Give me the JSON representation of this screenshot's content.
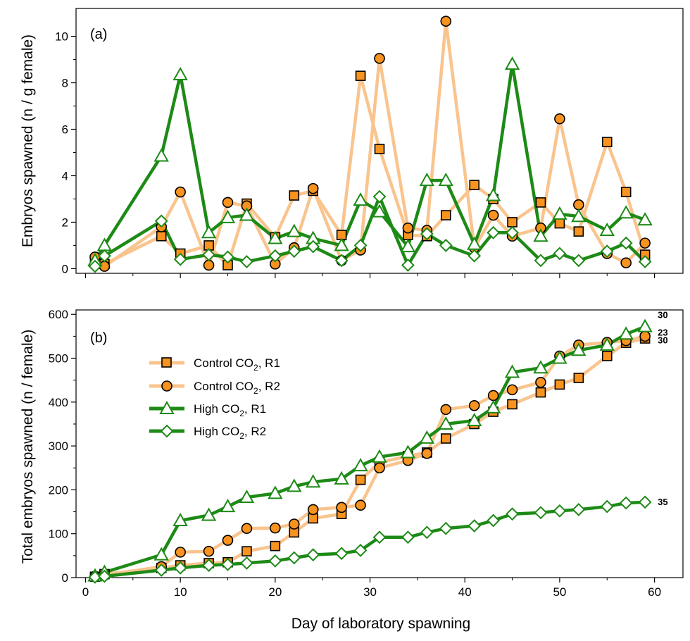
{
  "chart_data": [
    {
      "panel": "(a)",
      "type": "line",
      "xlabel": "",
      "ylabel": "Embryos spawned (n / g female)",
      "xlim": [
        -1,
        63
      ],
      "ylim": [
        -0.2,
        11.2
      ],
      "yticks": [
        0,
        2,
        4,
        6,
        8,
        10
      ],
      "xticks": [
        0,
        10,
        20,
        30,
        40,
        50,
        60
      ],
      "series": [
        {
          "name": "Control CO2, R1",
          "color": "#f9c48e",
          "marker": "square",
          "x": [
            1,
            2,
            8,
            10,
            13,
            15,
            17,
            20,
            22,
            24,
            27,
            29,
            31,
            34,
            36,
            38,
            41,
            43,
            45,
            48,
            50,
            52,
            55,
            57,
            59
          ],
          "y": [
            0.3,
            0.2,
            1.4,
            0.65,
            1.0,
            0.15,
            2.8,
            1.35,
            3.15,
            3.35,
            1.45,
            8.3,
            5.15,
            1.45,
            1.4,
            2.3,
            3.6,
            3.0,
            2.0,
            2.85,
            1.95,
            1.6,
            5.45,
            3.3,
            0.6
          ]
        },
        {
          "name": "Control CO2, R2",
          "color": "#f9c48e",
          "marker": "circle",
          "x": [
            1,
            2,
            8,
            10,
            13,
            15,
            17,
            20,
            22,
            24,
            27,
            29,
            31,
            34,
            36,
            38,
            41,
            43,
            45,
            48,
            50,
            52,
            55,
            57,
            59
          ],
          "y": [
            0.5,
            0.1,
            1.8,
            3.3,
            0.15,
            2.85,
            2.7,
            0.2,
            0.9,
            3.45,
            0.35,
            0.8,
            9.05,
            1.75,
            1.65,
            10.65,
            0.9,
            2.3,
            1.4,
            1.75,
            6.45,
            2.75,
            0.65,
            0.25,
            1.1
          ]
        },
        {
          "name": "High CO2, R1",
          "color": "#1d8a16",
          "marker": "triangle",
          "x": [
            1,
            2,
            8,
            10,
            13,
            15,
            17,
            20,
            22,
            24,
            27,
            29,
            31,
            34,
            36,
            38,
            41,
            43,
            45,
            48,
            50,
            52,
            55,
            57,
            59
          ],
          "y": [
            0.35,
            1.0,
            4.85,
            8.35,
            1.55,
            2.2,
            2.3,
            1.3,
            1.6,
            1.3,
            1.0,
            2.95,
            2.45,
            0.95,
            3.8,
            3.8,
            1.05,
            3.15,
            8.8,
            1.4,
            2.35,
            2.25,
            1.65,
            2.4,
            2.1
          ]
        },
        {
          "name": "High CO2, R2",
          "color": "#1d8a16",
          "marker": "diamond",
          "x": [
            1,
            2,
            8,
            10,
            13,
            15,
            17,
            20,
            22,
            24,
            27,
            29,
            31,
            34,
            36,
            38,
            41,
            43,
            45,
            48,
            50,
            52,
            55,
            57,
            59
          ],
          "y": [
            0.1,
            0.55,
            2.05,
            0.4,
            0.6,
            0.5,
            0.3,
            0.55,
            0.75,
            0.95,
            0.35,
            1.0,
            3.1,
            0.15,
            1.5,
            1.0,
            0.55,
            1.55,
            1.55,
            0.35,
            0.65,
            0.35,
            0.75,
            1.1,
            0.3
          ]
        }
      ]
    },
    {
      "panel": "(b)",
      "type": "line",
      "xlabel": "Day of laboratory spawning",
      "ylabel": "Total embryos spawned (n / female)",
      "xlim": [
        -1,
        63
      ],
      "ylim": [
        0,
        610
      ],
      "yticks": [
        0,
        100,
        200,
        300,
        400,
        500,
        600
      ],
      "xticks": [
        0,
        10,
        20,
        30,
        40,
        50,
        60
      ],
      "legend": "upper-left",
      "series": [
        {
          "name": "Control CO2, R1",
          "color": "#f9c48e",
          "marker": "square",
          "end_label": "30",
          "x": [
            1,
            2,
            8,
            10,
            13,
            15,
            17,
            20,
            22,
            24,
            27,
            29,
            31,
            34,
            36,
            38,
            41,
            43,
            45,
            48,
            50,
            52,
            55,
            57,
            59
          ],
          "y": [
            2,
            8,
            22,
            28,
            33,
            35,
            60,
            72,
            103,
            135,
            145,
            223,
            262,
            277,
            285,
            317,
            350,
            378,
            395,
            422,
            440,
            455,
            505,
            535,
            545
          ]
        },
        {
          "name": "Control CO2, R2",
          "color": "#f9c48e",
          "marker": "circle",
          "end_label": "23",
          "x": [
            1,
            2,
            8,
            10,
            13,
            15,
            17,
            20,
            22,
            24,
            27,
            29,
            31,
            34,
            36,
            38,
            41,
            43,
            45,
            48,
            50,
            52,
            55,
            57,
            59
          ],
          "y": [
            3,
            5,
            25,
            58,
            60,
            85,
            112,
            113,
            122,
            155,
            160,
            165,
            250,
            267,
            283,
            383,
            392,
            415,
            428,
            445,
            505,
            530,
            536,
            540,
            550
          ]
        },
        {
          "name": "High CO2, R1",
          "color": "#1d8a16",
          "marker": "triangle",
          "end_label": "30",
          "x": [
            1,
            2,
            8,
            10,
            13,
            15,
            17,
            20,
            22,
            24,
            27,
            29,
            31,
            34,
            36,
            38,
            41,
            43,
            45,
            48,
            50,
            52,
            55,
            57,
            59
          ],
          "y": [
            4,
            12,
            52,
            130,
            142,
            162,
            183,
            192,
            208,
            218,
            225,
            255,
            275,
            285,
            318,
            350,
            358,
            387,
            468,
            478,
            500,
            518,
            530,
            555,
            572
          ]
        },
        {
          "name": "High CO2, R2",
          "color": "#1d8a16",
          "marker": "diamond",
          "end_label": "35",
          "x": [
            1,
            2,
            8,
            10,
            13,
            15,
            17,
            20,
            22,
            24,
            27,
            29,
            31,
            34,
            36,
            38,
            41,
            43,
            45,
            48,
            50,
            52,
            55,
            57,
            59
          ],
          "y": [
            1,
            3,
            17,
            22,
            28,
            30,
            33,
            38,
            45,
            52,
            55,
            62,
            92,
            92,
            103,
            112,
            118,
            130,
            145,
            148,
            152,
            155,
            162,
            170,
            172
          ]
        }
      ]
    }
  ],
  "legend": {
    "items": [
      {
        "label_main": "Control CO",
        "label_sub": "2",
        "label_tail": ", R1"
      },
      {
        "label_main": "Control CO",
        "label_sub": "2",
        "label_tail": ", R2"
      },
      {
        "label_main": "High CO",
        "label_sub": "2",
        "label_tail": ", R1"
      },
      {
        "label_main": "High CO",
        "label_sub": "2",
        "label_tail": ", R2"
      }
    ]
  }
}
